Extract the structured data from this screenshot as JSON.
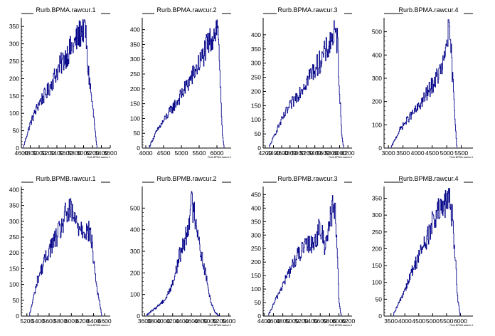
{
  "colors": {
    "line": "#0a0a8c",
    "axis": "#000000",
    "background": "#ffffff"
  },
  "chart_data": [
    {
      "type": "line",
      "title": "Rurb.BPMA.rawcur.1",
      "xlabel": "Rurb.BPMA.rawcur.1",
      "xlim": [
        4600,
        6600
      ],
      "ylim": [
        0,
        375
      ],
      "xticks": [
        4600,
        4800,
        5000,
        5200,
        5400,
        5600,
        5800,
        6000,
        6200,
        6400,
        6600
      ],
      "xtick_labels": [
        "4600",
        "4800",
        "5000",
        "5200",
        "5400",
        "5600",
        "5800",
        "6000",
        "6200",
        "6400",
        "6600"
      ],
      "yticks": [
        0,
        50,
        100,
        150,
        200,
        250,
        300,
        350
      ],
      "series": [
        {
          "x": [
            4650,
            4800,
            5000,
            5200,
            5400,
            5600,
            5800,
            6000,
            6050,
            6080,
            6130,
            6220,
            6300
          ],
          "values": [
            5,
            70,
            130,
            165,
            220,
            265,
            300,
            350,
            340,
            250,
            200,
            100,
            0
          ]
        }
      ]
    },
    {
      "type": "line",
      "title": "Rurb.BPMA.rawcur.2",
      "xlabel": "Rurb.BPMA.rawcur.2",
      "xlim": [
        3900,
        6400
      ],
      "ylim": [
        0,
        440
      ],
      "xticks": [
        4000,
        4500,
        5000,
        5500,
        6000
      ],
      "xtick_labels": [
        "4000",
        "4500",
        "5000",
        "5500",
        "6000"
      ],
      "yticks": [
        0,
        50,
        100,
        150,
        200,
        250,
        300,
        350,
        400
      ],
      "series": [
        {
          "x": [
            4100,
            4300,
            4600,
            4900,
            5200,
            5500,
            5800,
            6000,
            6050,
            6100,
            6150,
            6200
          ],
          "values": [
            5,
            55,
            110,
            160,
            220,
            285,
            360,
            410,
            380,
            200,
            50,
            0
          ]
        }
      ]
    },
    {
      "type": "line",
      "title": "Rurb.BPMA.rawcur.3",
      "xlabel": "Rurb.BPMA.rawcur.3",
      "xlim": [
        4150,
        6300
      ],
      "ylim": [
        0,
        460
      ],
      "xticks": [
        4200,
        4400,
        4600,
        4800,
        5000,
        5200,
        5400,
        5600,
        5800,
        6000,
        6200
      ],
      "xtick_labels": [
        "4200",
        "4400",
        "4600",
        "4800",
        "5000",
        "5200",
        "5400",
        "5600",
        "5800",
        "6000",
        "6200"
      ],
      "yticks": [
        0,
        50,
        100,
        150,
        200,
        250,
        300,
        350,
        400
      ],
      "series": [
        {
          "x": [
            4300,
            4500,
            4700,
            4900,
            5100,
            5300,
            5500,
            5700,
            5850,
            5950,
            6000,
            6050,
            6100
          ],
          "values": [
            5,
            70,
            125,
            170,
            215,
            260,
            300,
            350,
            400,
            380,
            200,
            50,
            0
          ]
        }
      ]
    },
    {
      "type": "line",
      "title": "Rurb.BPMA.rawcur.4",
      "xlabel": "Rurb.BPMA.rawcur.4",
      "xlim": [
        2850,
        5900
      ],
      "ylim": [
        0,
        560
      ],
      "xticks": [
        3000,
        3500,
        4000,
        4500,
        5000,
        5500
      ],
      "xtick_labels": [
        "3000",
        "3500",
        "4000",
        "4500",
        "5000",
        "5500"
      ],
      "yticks": [
        0,
        100,
        200,
        300,
        400,
        500
      ],
      "series": [
        {
          "x": [
            3100,
            3400,
            3700,
            4000,
            4300,
            4600,
            4900,
            5050,
            5150,
            5250,
            5350
          ],
          "values": [
            5,
            80,
            130,
            170,
            230,
            290,
            360,
            510,
            420,
            200,
            0
          ]
        }
      ]
    },
    {
      "type": "line",
      "title": "Rurb.BPMB.rawcur.1",
      "xlabel": "Rurb.BPMB.rawcur.1",
      "xlim": [
        5100,
        6700
      ],
      "ylim": [
        0,
        410
      ],
      "xticks": [
        5200,
        5400,
        5600,
        5800,
        6000,
        6200,
        6400,
        6600
      ],
      "xtick_labels": [
        "5200",
        "5400",
        "5600",
        "5800",
        "6000",
        "6200",
        "6400",
        "6600"
      ],
      "yticks": [
        0,
        50,
        100,
        150,
        200,
        250,
        300,
        350,
        400
      ],
      "series": [
        {
          "x": [
            5250,
            5400,
            5600,
            5800,
            5900,
            6000,
            6100,
            6200,
            6350,
            6450,
            6550
          ],
          "values": [
            5,
            120,
            210,
            270,
            320,
            330,
            290,
            280,
            260,
            100,
            0
          ]
        }
      ]
    },
    {
      "type": "line",
      "title": "Rurb.BPMB.rawcur.2",
      "xlabel": "Rurb.BPMB.rawcur.2",
      "xlim": [
        3550,
        5450
      ],
      "ylim": [
        0,
        600
      ],
      "xticks": [
        3600,
        3800,
        4000,
        4200,
        4400,
        4600,
        4800,
        5000,
        5200,
        5400
      ],
      "xtick_labels": [
        "3600",
        "3800",
        "4000",
        "4200",
        "4400",
        "4600",
        "4800",
        "5000",
        "5200",
        "5400"
      ],
      "yticks": [
        0,
        100,
        200,
        300,
        400,
        500
      ],
      "series": [
        {
          "x": [
            3650,
            3850,
            4050,
            4200,
            4350,
            4500,
            4600,
            4700,
            4800,
            4900,
            5000,
            5100,
            5200
          ],
          "values": [
            5,
            40,
            80,
            150,
            280,
            380,
            520,
            450,
            300,
            200,
            80,
            20,
            0
          ]
        }
      ]
    },
    {
      "type": "line",
      "title": "Rurb.BPMB.rawcur.3",
      "xlabel": "Rurb.BPMB.rawcur.3",
      "xlim": [
        4380,
        6280
      ],
      "ylim": [
        0,
        480
      ],
      "xticks": [
        4400,
        4600,
        4800,
        5000,
        5200,
        5400,
        5600,
        5800,
        6000,
        6200
      ],
      "xtick_labels": [
        "4400",
        "4600",
        "4800",
        "5000",
        "5200",
        "5400",
        "5600",
        "5800",
        "6000",
        "6200"
      ],
      "yticks": [
        0,
        50,
        100,
        150,
        200,
        250,
        300,
        350,
        400,
        450
      ],
      "series": [
        {
          "x": [
            4500,
            4700,
            4900,
            5100,
            5300,
            5500,
            5600,
            5700,
            5800,
            5900,
            5950,
            6000,
            6050
          ],
          "values": [
            5,
            80,
            150,
            220,
            260,
            280,
            330,
            260,
            350,
            420,
            300,
            50,
            0
          ]
        }
      ]
    },
    {
      "type": "line",
      "title": "Rurb.BPMB.rawcur.4",
      "xlabel": "Rurb.BPMB.rawcur.4",
      "xlim": [
        3250,
        6450
      ],
      "ylim": [
        0,
        385
      ],
      "xticks": [
        3500,
        4000,
        4500,
        5000,
        5500,
        6000
      ],
      "xtick_labels": [
        "3500",
        "4000",
        "4500",
        "5000",
        "5500",
        "6000"
      ],
      "yticks": [
        0,
        50,
        100,
        150,
        200,
        250,
        300,
        350
      ],
      "series": [
        {
          "x": [
            3600,
            3900,
            4200,
            4500,
            4800,
            5100,
            5400,
            5600,
            5700,
            5800,
            5900,
            6000
          ],
          "values": [
            5,
            60,
            120,
            180,
            230,
            300,
            320,
            355,
            300,
            200,
            50,
            0
          ]
        }
      ]
    }
  ]
}
